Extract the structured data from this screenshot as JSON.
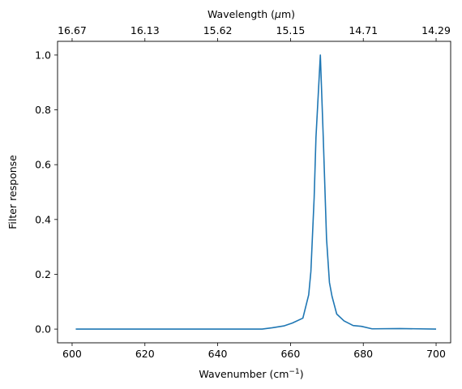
{
  "chart_data": {
    "type": "line",
    "xlabel": "Wavenumber (cm",
    "xlabel_sup": "−1",
    "xlabel_suffix": ")",
    "ylabel": "Filter response",
    "top_xlabel_pre": "Wavelength (",
    "top_xlabel_mu": "μ",
    "top_xlabel_post": "m)",
    "xlim": [
      596,
      704
    ],
    "ylim": [
      -0.05,
      1.05
    ],
    "xticks": [
      600,
      620,
      640,
      660,
      680,
      700
    ],
    "xtick_labels": [
      "600",
      "620",
      "640",
      "660",
      "680",
      "700"
    ],
    "yticks": [
      0.0,
      0.2,
      0.4,
      0.6,
      0.8,
      1.0
    ],
    "ytick_labels": [
      "0.0",
      "0.2",
      "0.4",
      "0.6",
      "0.8",
      "1.0"
    ],
    "top_ticks": [
      600,
      620,
      640,
      660,
      680,
      700
    ],
    "top_tick_labels": [
      "16.67",
      "16.13",
      "15.62",
      "15.15",
      "14.71",
      "14.29"
    ],
    "line_color": "#1f77b4",
    "series": [
      {
        "x": [
          601,
          610,
          620,
          630,
          640,
          650,
          652.2,
          655,
          658.3,
          660.5,
          663.4,
          665.0,
          665.6,
          666.5,
          667.0,
          667.4,
          668.2,
          669.0,
          669.9,
          670.7,
          671.4,
          672.7,
          674.7,
          677.2,
          679.5,
          682.4,
          690,
          700
        ],
        "y": [
          0.0,
          0.0,
          0.0,
          0.0,
          0.0,
          0.0,
          0.0,
          0.005,
          0.012,
          0.022,
          0.04,
          0.125,
          0.21,
          0.48,
          0.7,
          0.8,
          1.0,
          0.7,
          0.33,
          0.17,
          0.12,
          0.055,
          0.03,
          0.013,
          0.01,
          0.001,
          0.002,
          0.0
        ]
      }
    ]
  }
}
